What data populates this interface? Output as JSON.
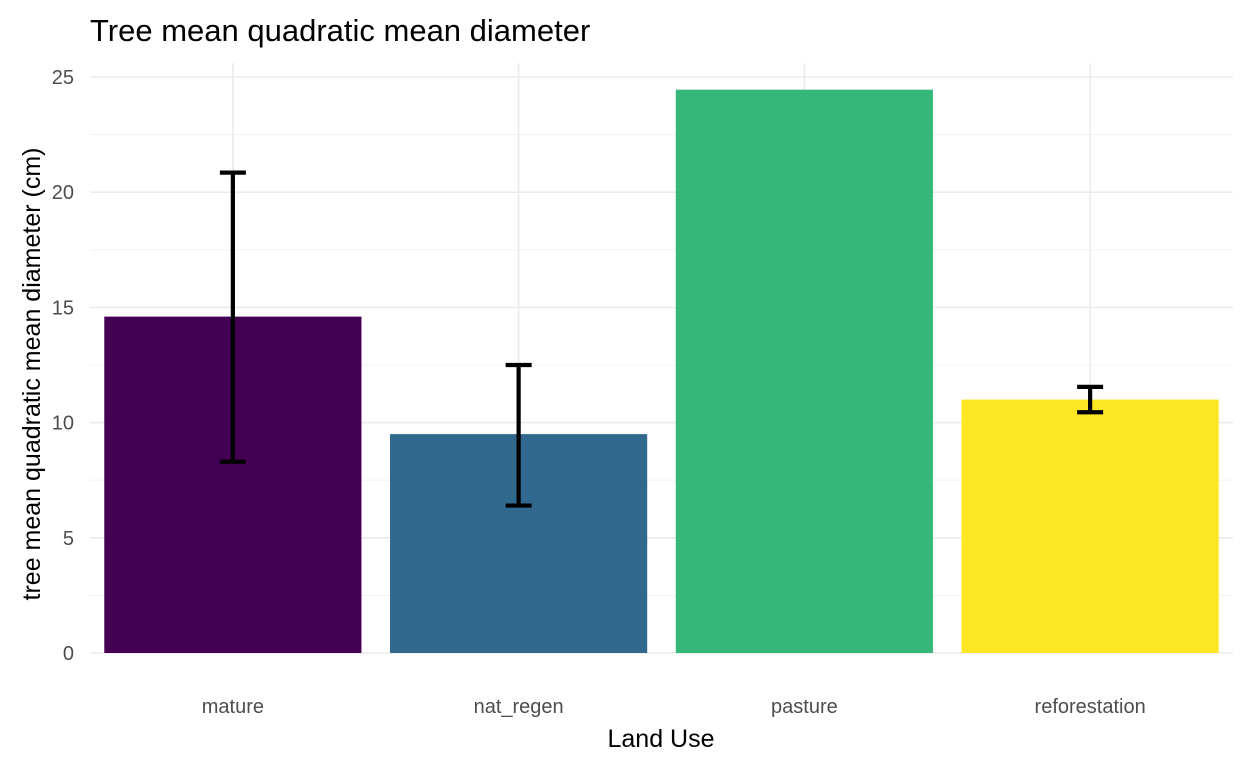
{
  "chart_data": {
    "type": "bar",
    "title": "Tree mean quadratic mean diameter",
    "xlabel": "Land Use",
    "ylabel": "tree mean quadratic mean diameter (cm)",
    "categories": [
      "mature",
      "nat_regen",
      "pasture",
      "reforestation"
    ],
    "values": [
      14.6,
      9.5,
      24.45,
      11.0
    ],
    "error_low": [
      8.3,
      6.4,
      null,
      10.45
    ],
    "error_high": [
      20.85,
      12.5,
      null,
      11.55
    ],
    "colors": [
      "#440154",
      "#31688e",
      "#35b779",
      "#fde725"
    ],
    "ylim": [
      0,
      25.6
    ],
    "yticks": [
      0,
      5,
      10,
      15,
      20,
      25
    ],
    "grid": true,
    "legend": "none"
  }
}
